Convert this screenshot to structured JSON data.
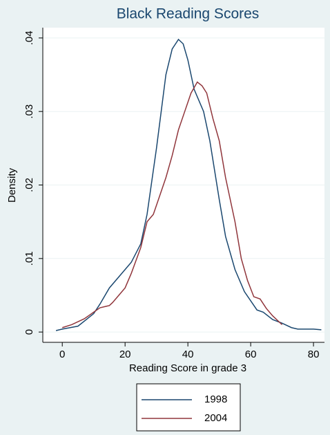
{
  "chart_data": {
    "type": "line",
    "title": "Black Reading Scores",
    "x_label": "Reading Score in grade 3",
    "y_label": "Density",
    "xlim": [
      -6.2,
      83.5
    ],
    "xticks": [
      0,
      20,
      40,
      60,
      80
    ],
    "ylim": [
      -0.0014,
      0.0414
    ],
    "yticks": [
      0,
      {
        "value": 0.01,
        "label": ".01"
      },
      {
        "value": 0.02,
        "label": ".02"
      },
      {
        "value": 0.03,
        "label": ".03"
      },
      {
        "value": 0.04,
        "label": ".04"
      }
    ],
    "grid": true,
    "legend": "bottom",
    "series": [
      {
        "name": "1998",
        "color": "#1a476f",
        "x": [
          -2,
          0,
          5,
          10,
          12,
          15,
          20,
          22,
          25,
          27,
          30,
          33,
          35,
          37,
          38.5,
          40,
          42,
          45,
          47,
          50,
          52,
          55,
          58,
          62,
          64,
          67,
          70,
          73,
          75,
          78,
          80,
          82.5
        ],
        "values": [
          0.0002,
          0.0004,
          0.0008,
          0.0025,
          0.0038,
          0.006,
          0.0085,
          0.0095,
          0.012,
          0.016,
          0.025,
          0.035,
          0.0385,
          0.0398,
          0.0392,
          0.037,
          0.033,
          0.03,
          0.026,
          0.018,
          0.013,
          0.0085,
          0.0055,
          0.003,
          0.0027,
          0.0017,
          0.0012,
          0.0006,
          0.0004,
          0.0004,
          0.0004,
          0.0003
        ]
      },
      {
        "name": "2004",
        "color": "#90353b",
        "x": [
          0,
          3,
          7,
          10,
          12,
          14,
          15,
          16,
          18,
          20,
          22,
          25,
          27,
          29,
          31,
          33,
          35,
          37,
          39,
          41,
          43,
          44.5,
          46,
          48,
          50,
          52,
          55,
          57,
          59,
          61,
          63,
          65,
          67,
          70
        ],
        "values": [
          0.0006,
          0.001,
          0.0018,
          0.0027,
          0.0033,
          0.0035,
          0.0036,
          0.004,
          0.005,
          0.006,
          0.008,
          0.0115,
          0.015,
          0.016,
          0.0185,
          0.021,
          0.024,
          0.0275,
          0.03,
          0.0325,
          0.034,
          0.0335,
          0.0325,
          0.029,
          0.026,
          0.021,
          0.015,
          0.01,
          0.007,
          0.0048,
          0.0045,
          0.0032,
          0.0022,
          0.001
        ]
      }
    ]
  }
}
